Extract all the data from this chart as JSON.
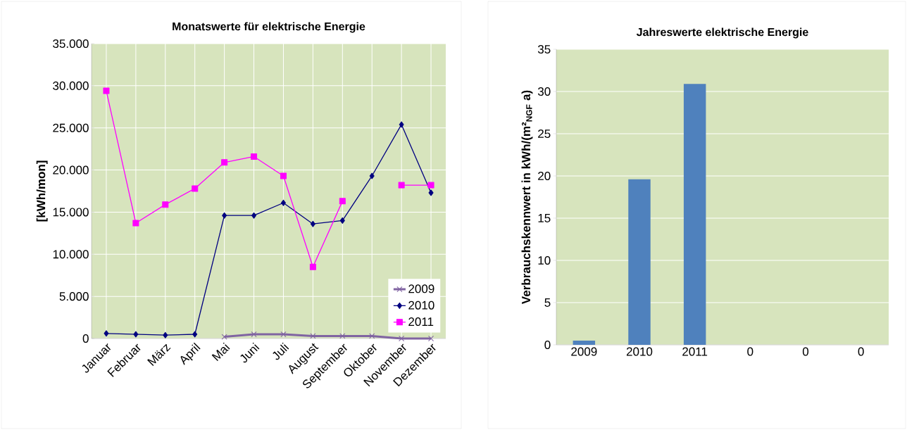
{
  "chart_data": [
    {
      "type": "line",
      "title": "Monatswerte für elektrische Energie",
      "ylabel": "[kWh/mon]",
      "categories": [
        "Januar",
        "Februar",
        "März",
        "April",
        "Mai",
        "Juni",
        "Juli",
        "August",
        "September",
        "Oktober",
        "November",
        "Dezember"
      ],
      "series": [
        {
          "name": "2009",
          "color": "#8064a2",
          "marker": "cross",
          "values": [
            null,
            null,
            null,
            null,
            200,
            500,
            500,
            300,
            300,
            300,
            0,
            0
          ]
        },
        {
          "name": "2010",
          "color": "#000080",
          "marker": "diamond",
          "values": [
            600,
            500,
            400,
            500,
            14600,
            14600,
            16100,
            13600,
            14000,
            19300,
            25400,
            17300
          ]
        },
        {
          "name": "2011",
          "color": "#ff00ff",
          "marker": "square",
          "values": [
            29400,
            13700,
            15900,
            17800,
            20900,
            21600,
            19300,
            8500,
            16300,
            null,
            18200,
            18200
          ]
        }
      ],
      "ylim": [
        0,
        35000
      ],
      "yticks": [
        {
          "value": 0,
          "label": "0"
        },
        {
          "value": 5000,
          "label": "5.000"
        },
        {
          "value": 10000,
          "label": "10.000"
        },
        {
          "value": 15000,
          "label": "15.000"
        },
        {
          "value": 20000,
          "label": "20.000"
        },
        {
          "value": 25000,
          "label": "25.000"
        },
        {
          "value": 30000,
          "label": "30.000"
        },
        {
          "value": 35000,
          "label": "35.000"
        }
      ],
      "grid": true,
      "legend": "right"
    },
    {
      "type": "bar",
      "title": "Jahreswerte elektrische Energie",
      "ylabel": "Verbrauchskennwert in kWh/(m²$_{NGF}$ a)",
      "categories": [
        "2009",
        "2010",
        "2011",
        "0",
        "0",
        "0"
      ],
      "values": [
        0.5,
        19.6,
        30.9,
        0,
        0,
        0
      ],
      "color": "#4f81bd",
      "ylim": [
        0,
        35
      ],
      "yticks": [
        0,
        5,
        10,
        15,
        20,
        25,
        30,
        35
      ],
      "grid": "y"
    }
  ]
}
